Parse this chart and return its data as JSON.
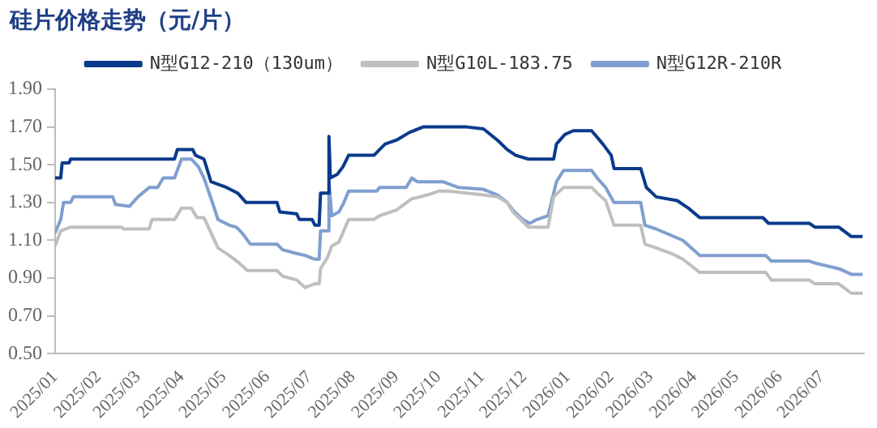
{
  "chart_data": {
    "type": "line",
    "title": "硅片价格走势（元/片）",
    "legend": "top",
    "grid": false,
    "marker": "none",
    "line_style": "solid",
    "xlim": [
      "2025-01-01",
      "2026-07-31"
    ],
    "xticks": [
      {
        "value": "2025-01-01",
        "label": "2025/01"
      },
      {
        "value": "2025-02-01",
        "label": "2025/02"
      },
      {
        "value": "2025-03-01",
        "label": "2025/03"
      },
      {
        "value": "2025-04-01",
        "label": "2025/04"
      },
      {
        "value": "2025-05-01",
        "label": "2025/05"
      },
      {
        "value": "2025-06-01",
        "label": "2025/06"
      },
      {
        "value": "2025-07-01",
        "label": "2025/07"
      },
      {
        "value": "2025-08-01",
        "label": "2025/08"
      },
      {
        "value": "2025-09-01",
        "label": "2025/09"
      },
      {
        "value": "2025-10-01",
        "label": "2025/10"
      },
      {
        "value": "2025-11-01",
        "label": "2025/11"
      },
      {
        "value": "2025-12-01",
        "label": "2025/12"
      },
      {
        "value": "2026-01-01",
        "label": "2026/01"
      },
      {
        "value": "2026-02-01",
        "label": "2026/02"
      },
      {
        "value": "2026-03-01",
        "label": "2026/03"
      },
      {
        "value": "2026-04-01",
        "label": "2026/04"
      },
      {
        "value": "2026-05-01",
        "label": "2026/05"
      },
      {
        "value": "2026-06-01",
        "label": "2026/06"
      },
      {
        "value": "2026-07-01",
        "label": "2026/07"
      }
    ],
    "ylim": [
      0.5,
      1.9
    ],
    "yticks": [
      {
        "value": 0.5,
        "label": "0.50"
      },
      {
        "value": 0.7,
        "label": "0.70"
      },
      {
        "value": 0.9,
        "label": "0.90"
      },
      {
        "value": 1.1,
        "label": "1.10"
      },
      {
        "value": 1.3,
        "label": "1.30"
      },
      {
        "value": 1.5,
        "label": "1.50"
      },
      {
        "value": 1.7,
        "label": "1.70"
      },
      {
        "value": 1.9,
        "label": "1.90"
      }
    ],
    "series": [
      {
        "name": "N型G12-210（130um）",
        "color": "#0b3a8c",
        "x": [
          "2025-01-01",
          "2025-01-05",
          "2025-01-06",
          "2025-01-11",
          "2025-01-12",
          "2025-03-27",
          "2025-03-29",
          "2025-04-09",
          "2025-04-11",
          "2025-04-17",
          "2025-04-22",
          "2025-05-03",
          "2025-05-11",
          "2025-05-17",
          "2025-06-08",
          "2025-06-10",
          "2025-06-22",
          "2025-06-24",
          "2025-07-03",
          "2025-07-05",
          "2025-07-08",
          "2025-07-09",
          "2025-07-14",
          "2025-07-15",
          "2025-07-16",
          "2025-07-21",
          "2025-07-25",
          "2025-07-29",
          "2025-08-16",
          "2025-08-20",
          "2025-08-24",
          "2025-09-01",
          "2025-09-10",
          "2025-09-20",
          "2025-10-21",
          "2025-11-02",
          "2025-11-12",
          "2025-11-19",
          "2025-11-25",
          "2025-12-04",
          "2025-12-22",
          "2025-12-24",
          "2025-12-30",
          "2026-01-05",
          "2026-01-18",
          "2026-01-26",
          "2026-02-01",
          "2026-02-03",
          "2026-02-22",
          "2026-02-26",
          "2026-03-05",
          "2026-03-20",
          "2026-03-28",
          "2026-04-05",
          "2026-05-20",
          "2026-05-24",
          "2026-06-22",
          "2026-06-26",
          "2026-07-13",
          "2026-07-22",
          "2026-07-30"
        ],
        "values": [
          1.43,
          1.43,
          1.51,
          1.51,
          1.53,
          1.53,
          1.58,
          1.58,
          1.55,
          1.53,
          1.41,
          1.38,
          1.35,
          1.3,
          1.3,
          1.25,
          1.24,
          1.21,
          1.21,
          1.18,
          1.18,
          1.35,
          1.35,
          1.65,
          1.43,
          1.45,
          1.49,
          1.55,
          1.55,
          1.58,
          1.61,
          1.63,
          1.67,
          1.7,
          1.7,
          1.69,
          1.63,
          1.58,
          1.55,
          1.53,
          1.53,
          1.61,
          1.66,
          1.68,
          1.68,
          1.61,
          1.55,
          1.48,
          1.48,
          1.38,
          1.33,
          1.31,
          1.27,
          1.22,
          1.22,
          1.19,
          1.19,
          1.17,
          1.17,
          1.12,
          1.12
        ]
      },
      {
        "name": "N型G10L-183.75",
        "color": "#bfbfbf",
        "x": [
          "2025-01-01",
          "2025-01-05",
          "2025-01-12",
          "2025-02-17",
          "2025-02-19",
          "2025-03-09",
          "2025-03-11",
          "2025-03-27",
          "2025-04-01",
          "2025-04-08",
          "2025-04-12",
          "2025-04-17",
          "2025-04-22",
          "2025-04-27",
          "2025-05-05",
          "2025-05-12",
          "2025-05-18",
          "2025-06-08",
          "2025-06-12",
          "2025-06-22",
          "2025-06-28",
          "2025-07-05",
          "2025-07-08",
          "2025-07-09",
          "2025-07-14",
          "2025-07-17",
          "2025-07-22",
          "2025-07-29",
          "2025-08-16",
          "2025-08-20",
          "2025-09-01",
          "2025-09-12",
          "2025-09-23",
          "2025-10-01",
          "2025-10-09",
          "2025-10-21",
          "2025-11-02",
          "2025-11-12",
          "2025-11-19",
          "2025-11-23",
          "2025-12-04",
          "2025-12-18",
          "2025-12-22",
          "2025-12-29",
          "2026-01-18",
          "2026-01-22",
          "2026-01-28",
          "2026-02-03",
          "2026-02-22",
          "2026-02-25",
          "2026-03-05",
          "2026-03-16",
          "2026-03-24",
          "2026-04-05",
          "2026-05-22",
          "2026-05-26",
          "2026-06-22",
          "2026-06-26",
          "2026-07-13",
          "2026-07-22",
          "2026-07-30"
        ],
        "values": [
          1.07,
          1.15,
          1.17,
          1.17,
          1.16,
          1.16,
          1.21,
          1.21,
          1.27,
          1.27,
          1.22,
          1.22,
          1.14,
          1.06,
          1.02,
          0.98,
          0.94,
          0.94,
          0.91,
          0.89,
          0.85,
          0.87,
          0.87,
          0.95,
          1.01,
          1.07,
          1.09,
          1.21,
          1.21,
          1.23,
          1.26,
          1.32,
          1.34,
          1.36,
          1.36,
          1.35,
          1.34,
          1.33,
          1.3,
          1.25,
          1.17,
          1.17,
          1.33,
          1.38,
          1.38,
          1.35,
          1.31,
          1.18,
          1.18,
          1.08,
          1.06,
          1.03,
          1.0,
          0.93,
          0.93,
          0.89,
          0.89,
          0.87,
          0.87,
          0.82,
          0.82
        ]
      },
      {
        "name": "N型G12R-210R",
        "color": "#7f9fcf",
        "x": [
          "2025-01-01",
          "2025-01-05",
          "2025-01-07",
          "2025-01-12",
          "2025-01-14",
          "2025-02-11",
          "2025-02-13",
          "2025-02-23",
          "2025-03-01",
          "2025-03-09",
          "2025-03-15",
          "2025-03-19",
          "2025-03-27",
          "2025-04-01",
          "2025-04-08",
          "2025-04-13",
          "2025-04-17",
          "2025-04-23",
          "2025-04-27",
          "2025-05-05",
          "2025-05-10",
          "2025-05-14",
          "2025-05-20",
          "2025-06-08",
          "2025-06-12",
          "2025-06-22",
          "2025-06-28",
          "2025-07-05",
          "2025-07-08",
          "2025-07-09",
          "2025-07-14",
          "2025-07-15",
          "2025-07-17",
          "2025-07-22",
          "2025-07-25",
          "2025-07-29",
          "2025-08-18",
          "2025-08-20",
          "2025-09-08",
          "2025-09-12",
          "2025-09-16",
          "2025-10-04",
          "2025-10-15",
          "2025-11-02",
          "2025-11-12",
          "2025-11-19",
          "2025-11-23",
          "2025-11-30",
          "2025-12-05",
          "2025-12-10",
          "2025-12-18",
          "2025-12-24",
          "2025-12-29",
          "2026-01-18",
          "2026-01-22",
          "2026-01-28",
          "2026-02-03",
          "2026-02-22",
          "2026-02-25",
          "2026-03-05",
          "2026-03-24",
          "2026-03-30",
          "2026-04-05",
          "2026-05-22",
          "2026-05-26",
          "2026-06-22",
          "2026-06-26",
          "2026-07-13",
          "2026-07-22",
          "2026-07-30"
        ],
        "values": [
          1.14,
          1.21,
          1.3,
          1.3,
          1.33,
          1.33,
          1.29,
          1.28,
          1.33,
          1.38,
          1.38,
          1.43,
          1.43,
          1.53,
          1.53,
          1.49,
          1.43,
          1.3,
          1.21,
          1.18,
          1.17,
          1.14,
          1.08,
          1.08,
          1.05,
          1.03,
          1.02,
          1.0,
          1.0,
          1.15,
          1.15,
          1.41,
          1.23,
          1.25,
          1.29,
          1.36,
          1.36,
          1.38,
          1.38,
          1.43,
          1.41,
          1.41,
          1.38,
          1.37,
          1.34,
          1.3,
          1.26,
          1.21,
          1.19,
          1.21,
          1.23,
          1.41,
          1.47,
          1.47,
          1.43,
          1.38,
          1.3,
          1.3,
          1.18,
          1.16,
          1.1,
          1.06,
          1.02,
          1.02,
          0.99,
          0.99,
          0.98,
          0.95,
          0.92,
          0.92
        ]
      }
    ]
  }
}
